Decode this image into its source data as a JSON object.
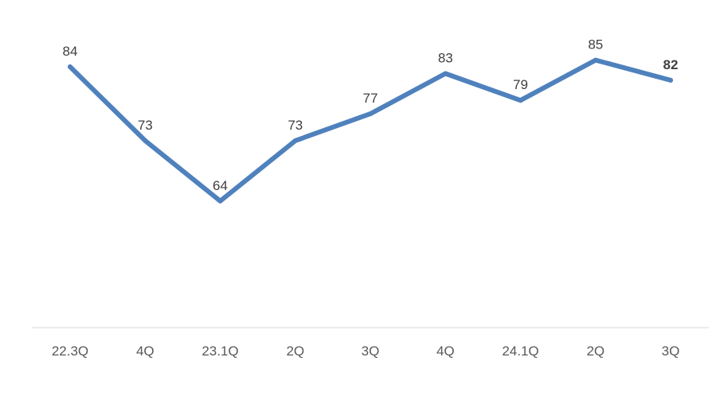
{
  "chart_data": {
    "type": "line",
    "categories": [
      "22.3Q",
      "4Q",
      "23.1Q",
      "2Q",
      "3Q",
      "4Q",
      "24.1Q",
      "2Q",
      "3Q"
    ],
    "series": [
      {
        "values": [
          84,
          73,
          64,
          73,
          77,
          83,
          79,
          85,
          82
        ],
        "color": "#4f81bd"
      }
    ],
    "data_label_styles": [
      {
        "color": "#404040",
        "bold": false
      },
      {
        "color": "#404040",
        "bold": false
      },
      {
        "color": "#404040",
        "bold": false
      },
      {
        "color": "#404040",
        "bold": false
      },
      {
        "color": "#404040",
        "bold": false
      },
      {
        "color": "#404040",
        "bold": false
      },
      {
        "color": "#404040",
        "bold": false
      },
      {
        "color": "#000000",
        "bold": false
      },
      {
        "color": "#c00000",
        "bold": true
      }
    ],
    "axis_color": "#d9d9d9",
    "grid": false,
    "legend": "none"
  }
}
